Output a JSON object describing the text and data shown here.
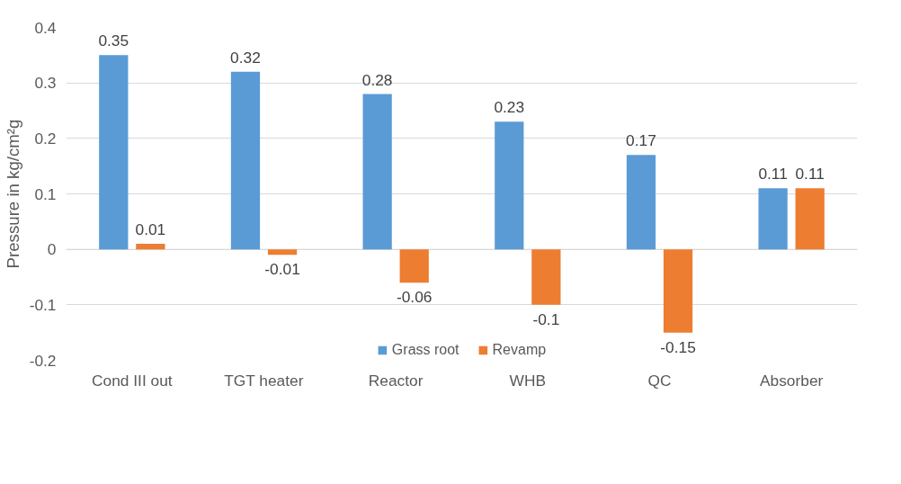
{
  "chart_data": {
    "type": "bar",
    "ylabel": "Pressure in kg/cm²g",
    "categories": [
      "Cond III out",
      "TGT heater",
      "Reactor",
      "WHB",
      "QC",
      "Absorber"
    ],
    "series": [
      {
        "name": "Grass root",
        "color": "#5b9bd5",
        "values": [
          0.35,
          0.32,
          0.28,
          0.23,
          0.17,
          0.11
        ]
      },
      {
        "name": "Revamp",
        "color": "#ed7d31",
        "values": [
          0.01,
          -0.01,
          -0.06,
          -0.1,
          -0.15,
          0.11
        ]
      }
    ],
    "ylim": [
      -0.2,
      0.4
    ],
    "yticks": [
      -0.2,
      -0.1,
      0,
      0.1,
      0.2,
      0.3,
      0.4
    ],
    "grid": "y",
    "legend": "bottom",
    "data_labels": true
  }
}
